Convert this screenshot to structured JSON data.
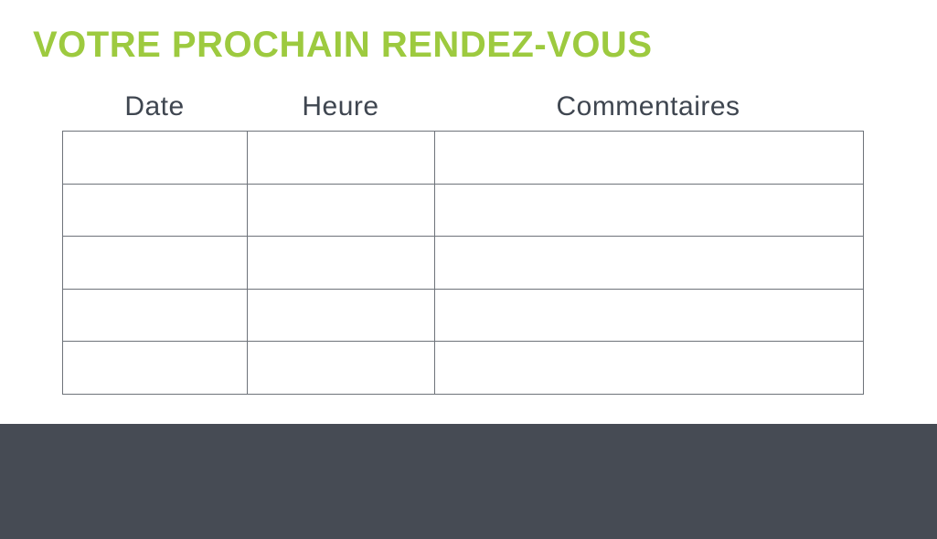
{
  "header": {
    "title": "VOTRE PROCHAIN RENDEZ-VOUS"
  },
  "table": {
    "columns": [
      {
        "label": "Date"
      },
      {
        "label": "Heure"
      },
      {
        "label": "Commentaires"
      }
    ],
    "rows": [
      [
        "",
        "",
        ""
      ],
      [
        "",
        "",
        ""
      ],
      [
        "",
        "",
        ""
      ],
      [
        "",
        "",
        ""
      ],
      [
        "",
        "",
        ""
      ]
    ]
  },
  "colors": {
    "accent_green": "#9dca3f",
    "header_text": "#3f4650",
    "table_border": "#6e737a",
    "footer_band": "#464b54",
    "background": "#ffffff"
  }
}
